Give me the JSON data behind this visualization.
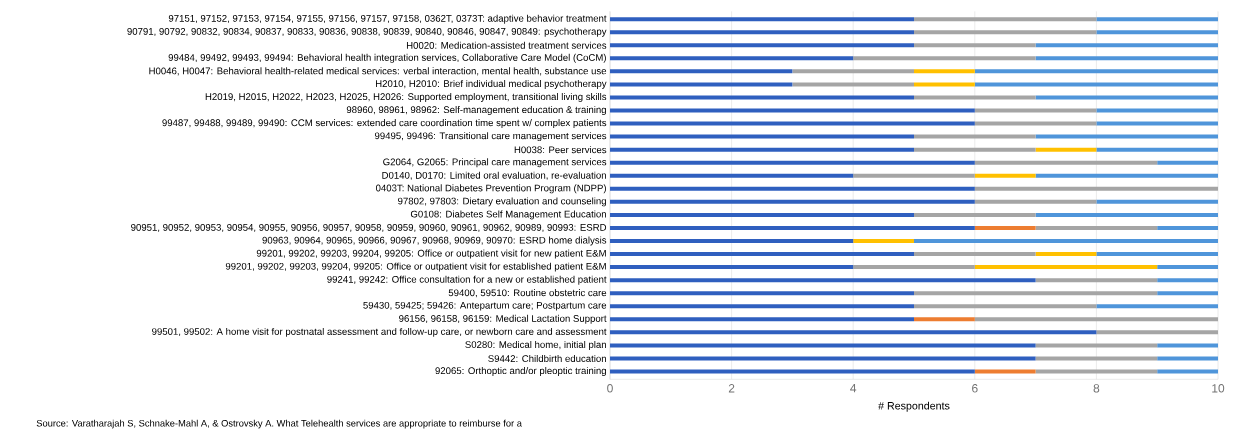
{
  "chart_data": {
    "type": "bar",
    "orientation": "horizontal",
    "stacked": true,
    "categories": [
      "97151, 97152, 97153, 97154, 97155, 97156, 97157, 97158, 0362T, 0373T: adaptive behavior treatment",
      "90791, 90792, 90832, 90834, 90837, 90833, 90836, 90838, 90839, 90840, 90846, 90847, 90849: psychotherapy",
      "H0020: Medication-assisted treatment services",
      "99484, 99492, 99493, 99494: Behavioral health integration services, Collaborative Care Model (CoCM)",
      "H0046, H0047: Behavioral health-related medical services: verbal interaction, mental health, substance use",
      "H2010, H2010: Brief individual medical psychotherapy",
      "H2019, H2015, H2022, H2023, H2025, H2026: Supported employment, transitional living skills",
      "98960, 98961, 98962: Self-management education & training",
      "99487, 99488, 99489, 99490: CCM services: extended care coordination time spent w/ complex patients",
      "99495, 99496: Transitional care management services",
      "H0038: Peer services",
      "G2064, G2065: Principal care management services",
      "D0140, D0170: Limited oral evaluation, re-evaluation",
      "0403T: National Diabetes Prevention Program (NDPP)",
      "97802, 97803: Dietary evaluation and counseling",
      "G0108: Diabetes Self Management Education",
      "90951, 90952, 90953, 90954, 90955, 90956, 90957, 90958, 90959, 90960, 90961, 90962, 90989, 90993: ESRD",
      "90963, 90964, 90965, 90966, 90967, 90968, 90969, 90970: ESRD home dialysis",
      "99201, 99202, 99203, 99204, 99205: Office or outpatient visit for new patient E&M",
      "99201, 99202, 99203, 99204, 99205: Office or outpatient visit for established patient E&M",
      "99241, 99242: Office consultation for a new or established patient",
      "59400, 59510: Routine obstetric care",
      "59430, 59425; 59426: Antepartum care; Postpartum care",
      "96156, 96158, 96159: Medical Lactation Support",
      "99501, 99502: A home visit for postnatal assessment and follow-up care, or newborn care and assessment",
      "S0280: Medical home, initial plan",
      "S9442: Childbirth education",
      "92065: Orthoptic and/or pleoptic training"
    ],
    "series": [
      {
        "color": "#2f5fbf",
        "values": [
          5,
          5,
          5,
          4,
          3,
          3,
          5,
          6,
          6,
          5,
          5,
          6,
          4,
          6,
          6,
          5,
          6,
          4,
          5,
          4,
          7,
          5,
          5,
          5,
          8,
          7,
          7,
          6
        ]
      },
      {
        "color": "#ed7d31",
        "values": [
          0,
          0,
          0,
          0,
          0,
          0,
          0,
          0,
          0,
          0,
          0,
          0,
          0,
          0,
          0,
          0,
          1,
          0,
          0,
          0,
          0,
          0,
          0,
          1,
          0,
          0,
          0,
          1
        ]
      },
      {
        "color": "#a5a5a5",
        "values": [
          3,
          3,
          2,
          3,
          2,
          2,
          2,
          2,
          2,
          2,
          2,
          3,
          2,
          4,
          2,
          2,
          2,
          0,
          2,
          2,
          2,
          4,
          3,
          4,
          2,
          2,
          2,
          2
        ]
      },
      {
        "color": "#ffc000",
        "values": [
          0,
          0,
          0,
          0,
          1,
          1,
          0,
          0,
          0,
          0,
          1,
          0,
          1,
          0,
          0,
          0,
          0,
          1,
          1,
          3,
          0,
          0,
          0,
          0,
          0,
          0,
          0,
          0
        ]
      },
      {
        "color": "#4f95da",
        "values": [
          2,
          2,
          3,
          3,
          4,
          4,
          3,
          2,
          2,
          3,
          2,
          1,
          3,
          0,
          2,
          3,
          1,
          5,
          2,
          1,
          1,
          1,
          2,
          0,
          0,
          1,
          1,
          1
        ]
      }
    ],
    "xlim": [
      0,
      10
    ],
    "xticks": [
      0,
      2,
      4,
      6,
      8,
      10
    ],
    "grid": "x",
    "xlabel": "# Respondents",
    "annotations": [
      "Source: Varatharajah S, Schnake-Mahl A, & Ostrovsky A. What Telehealth services are appropriate to reimburse for a"
    ]
  }
}
